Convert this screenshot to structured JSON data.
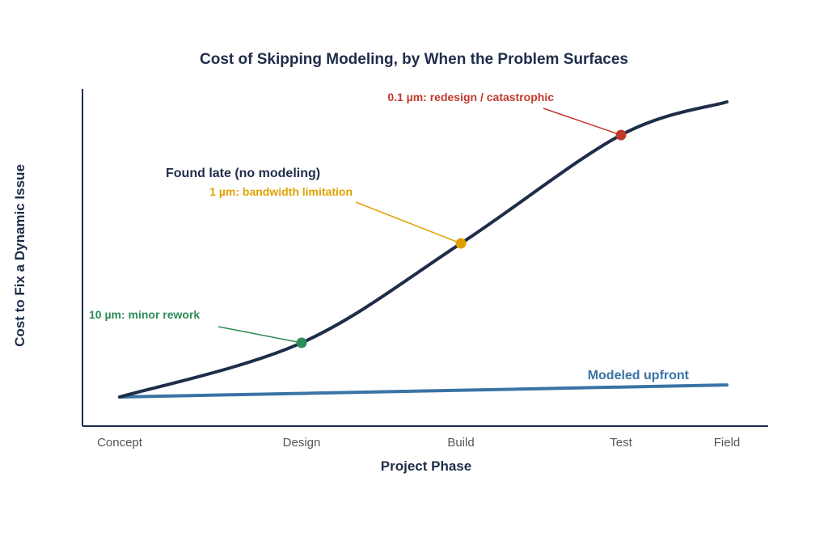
{
  "chart_data": {
    "type": "line",
    "title": "Cost of Skipping Modeling, by When the Problem Surfaces",
    "xlabel": "Project Phase",
    "ylabel": "Cost to Fix a Dynamic Issue",
    "categories": [
      "Concept",
      "Design",
      "Build",
      "Test",
      "Field"
    ],
    "y_ticks_shown": false,
    "grid": false,
    "series": [
      {
        "name": "Found late (no modeling)",
        "color": "#1f2d4a",
        "values": [
          0.02,
          0.2,
          0.53,
          0.89,
          1.0
        ]
      },
      {
        "name": "Modeled upfront",
        "color": "#3a73a6",
        "values": [
          0.02,
          0.03,
          0.04,
          0.05,
          0.06
        ]
      }
    ],
    "annotations": [
      {
        "text": "10 µm: minor rework",
        "x": 1,
        "y": 0.2,
        "color": "#2e8b57"
      },
      {
        "text": "1 µm: bandwidth limitation",
        "x": 2,
        "y": 0.53,
        "color": "#e0a000"
      },
      {
        "text": "0.1 µm: redesign / catastrophic",
        "x": 3,
        "y": 0.89,
        "color": "#c0392b"
      }
    ]
  }
}
